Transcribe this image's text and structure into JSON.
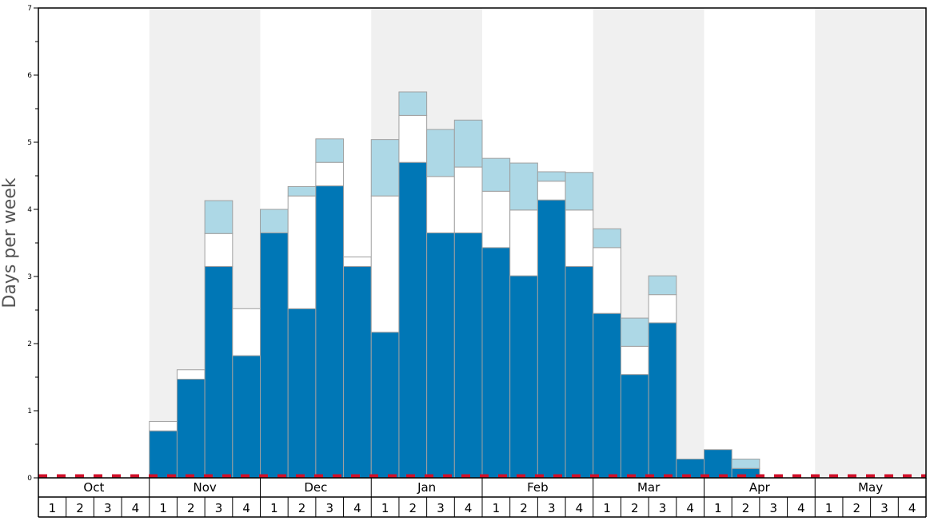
{
  "chart_data": {
    "type": "bar",
    "stacked": true,
    "ylabel": "Days per week",
    "ylim": [
      0,
      7
    ],
    "y_ticks": [
      "0",
      "1",
      "2",
      "3",
      "4",
      "5",
      "6",
      "7"
    ],
    "grid": false,
    "months": [
      {
        "label": "Oct",
        "weeks": [
          "1",
          "2",
          "3",
          "4"
        ],
        "shaded": false
      },
      {
        "label": "Nov",
        "weeks": [
          "1",
          "2",
          "3",
          "4"
        ],
        "shaded": true
      },
      {
        "label": "Dec",
        "weeks": [
          "1",
          "2",
          "3",
          "4"
        ],
        "shaded": false
      },
      {
        "label": "Jan",
        "weeks": [
          "1",
          "2",
          "3",
          "4"
        ],
        "shaded": true
      },
      {
        "label": "Feb",
        "weeks": [
          "1",
          "2",
          "3",
          "4"
        ],
        "shaded": false
      },
      {
        "label": "Mar",
        "weeks": [
          "1",
          "2",
          "3",
          "4"
        ],
        "shaded": true
      },
      {
        "label": "Apr",
        "weeks": [
          "1",
          "2",
          "3",
          "4"
        ],
        "shaded": false
      },
      {
        "label": "May",
        "weeks": [
          "1",
          "2",
          "3",
          "4"
        ],
        "shaded": true
      }
    ],
    "series": [
      {
        "color": "#0077b6",
        "values": [
          0,
          0,
          0,
          0,
          0.7,
          1.47,
          3.15,
          1.82,
          3.65,
          2.52,
          4.35,
          3.15,
          2.17,
          4.7,
          3.65,
          3.65,
          3.43,
          3.01,
          4.14,
          3.15,
          2.45,
          1.54,
          2.31,
          0.28,
          0.42,
          0.14,
          0,
          0,
          0,
          0,
          0,
          0
        ]
      },
      {
        "color": "#ffffff",
        "values": [
          0,
          0,
          0,
          0,
          0.14,
          0.14,
          0.49,
          0.7,
          0,
          1.68,
          0.35,
          0.14,
          2.03,
          0.7,
          0.84,
          0.98,
          0.84,
          0.98,
          0.28,
          0.84,
          0.98,
          0.42,
          0.42,
          0,
          0,
          0,
          0,
          0,
          0,
          0,
          0,
          0
        ]
      },
      {
        "color": "#add8e6",
        "values": [
          0,
          0,
          0,
          0,
          0,
          0,
          0.49,
          0,
          0.35,
          0.14,
          0.35,
          0,
          0.84,
          0.35,
          0.7,
          0.7,
          0.49,
          0.7,
          0.14,
          0.56,
          0.28,
          0.42,
          0.28,
          0,
          0,
          0.14,
          0,
          0,
          0,
          0,
          0,
          0
        ]
      }
    ],
    "baseline_line": {
      "value": 0,
      "style": "dashed",
      "color": "#d0102a"
    }
  }
}
